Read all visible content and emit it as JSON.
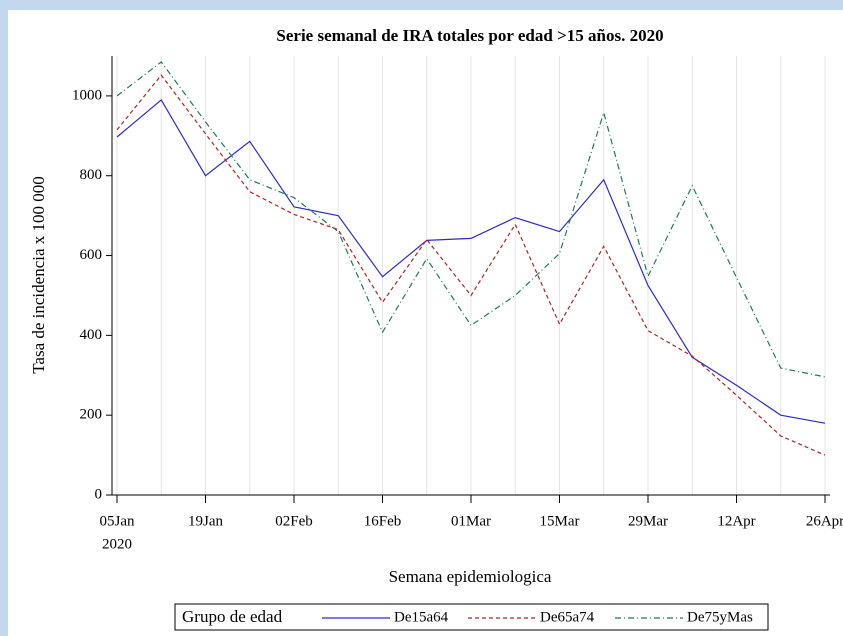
{
  "chart_data": {
    "type": "line",
    "title": "Serie semanal de IRA totales por edad >15 años. 2020",
    "y_label": "Tasa de incidencia x 100 000",
    "x_label": "Semana epidemiologica",
    "x_year_label": "2020",
    "legend_title": "Grupo de edad",
    "legend": "bottom",
    "grid": true,
    "x": [
      "2020-01-05",
      "2020-01-12",
      "2020-01-19",
      "2020-01-26",
      "2020-02-02",
      "2020-02-09",
      "2020-02-16",
      "2020-02-23",
      "2020-03-01",
      "2020-03-08",
      "2020-03-15",
      "2020-03-22",
      "2020-03-29",
      "2020-04-05",
      "2020-04-12",
      "2020-04-19",
      "2020-04-26"
    ],
    "xlim": [
      "2020-01-05",
      "2020-04-26"
    ],
    "xticks": [
      {
        "value": "2020-01-05",
        "label": "05Jan"
      },
      {
        "value": "2020-01-19",
        "label": "19Jan"
      },
      {
        "value": "2020-02-02",
        "label": "02Feb"
      },
      {
        "value": "2020-02-16",
        "label": "16Feb"
      },
      {
        "value": "2020-03-01",
        "label": "01Mar"
      },
      {
        "value": "2020-03-15",
        "label": "15Mar"
      },
      {
        "value": "2020-03-29",
        "label": "29Mar"
      },
      {
        "value": "2020-04-12",
        "label": "12Apr"
      },
      {
        "value": "2020-04-26",
        "label": "26Apr"
      }
    ],
    "ylim": [
      0,
      1100
    ],
    "yticks": [
      0,
      200,
      400,
      600,
      800,
      1000
    ],
    "series": [
      {
        "name": "De15a64",
        "color": "#2b2bd0",
        "dash": "solid",
        "values": [
          897,
          990,
          800,
          886,
          722,
          700,
          547,
          638,
          643,
          695,
          660,
          790,
          525,
          345,
          275,
          200,
          180
        ]
      },
      {
        "name": "De65a74",
        "color": "#b22222",
        "dash": "dashed",
        "values": [
          915,
          1052,
          905,
          760,
          703,
          665,
          483,
          640,
          500,
          678,
          428,
          623,
          412,
          348,
          250,
          148,
          100
        ]
      },
      {
        "name": "De75yMas",
        "color": "#1f7a5a",
        "dash": "dashdot",
        "values": [
          1000,
          1085,
          935,
          790,
          745,
          660,
          408,
          592,
          425,
          500,
          605,
          958,
          548,
          775,
          545,
          318,
          296
        ]
      }
    ]
  }
}
